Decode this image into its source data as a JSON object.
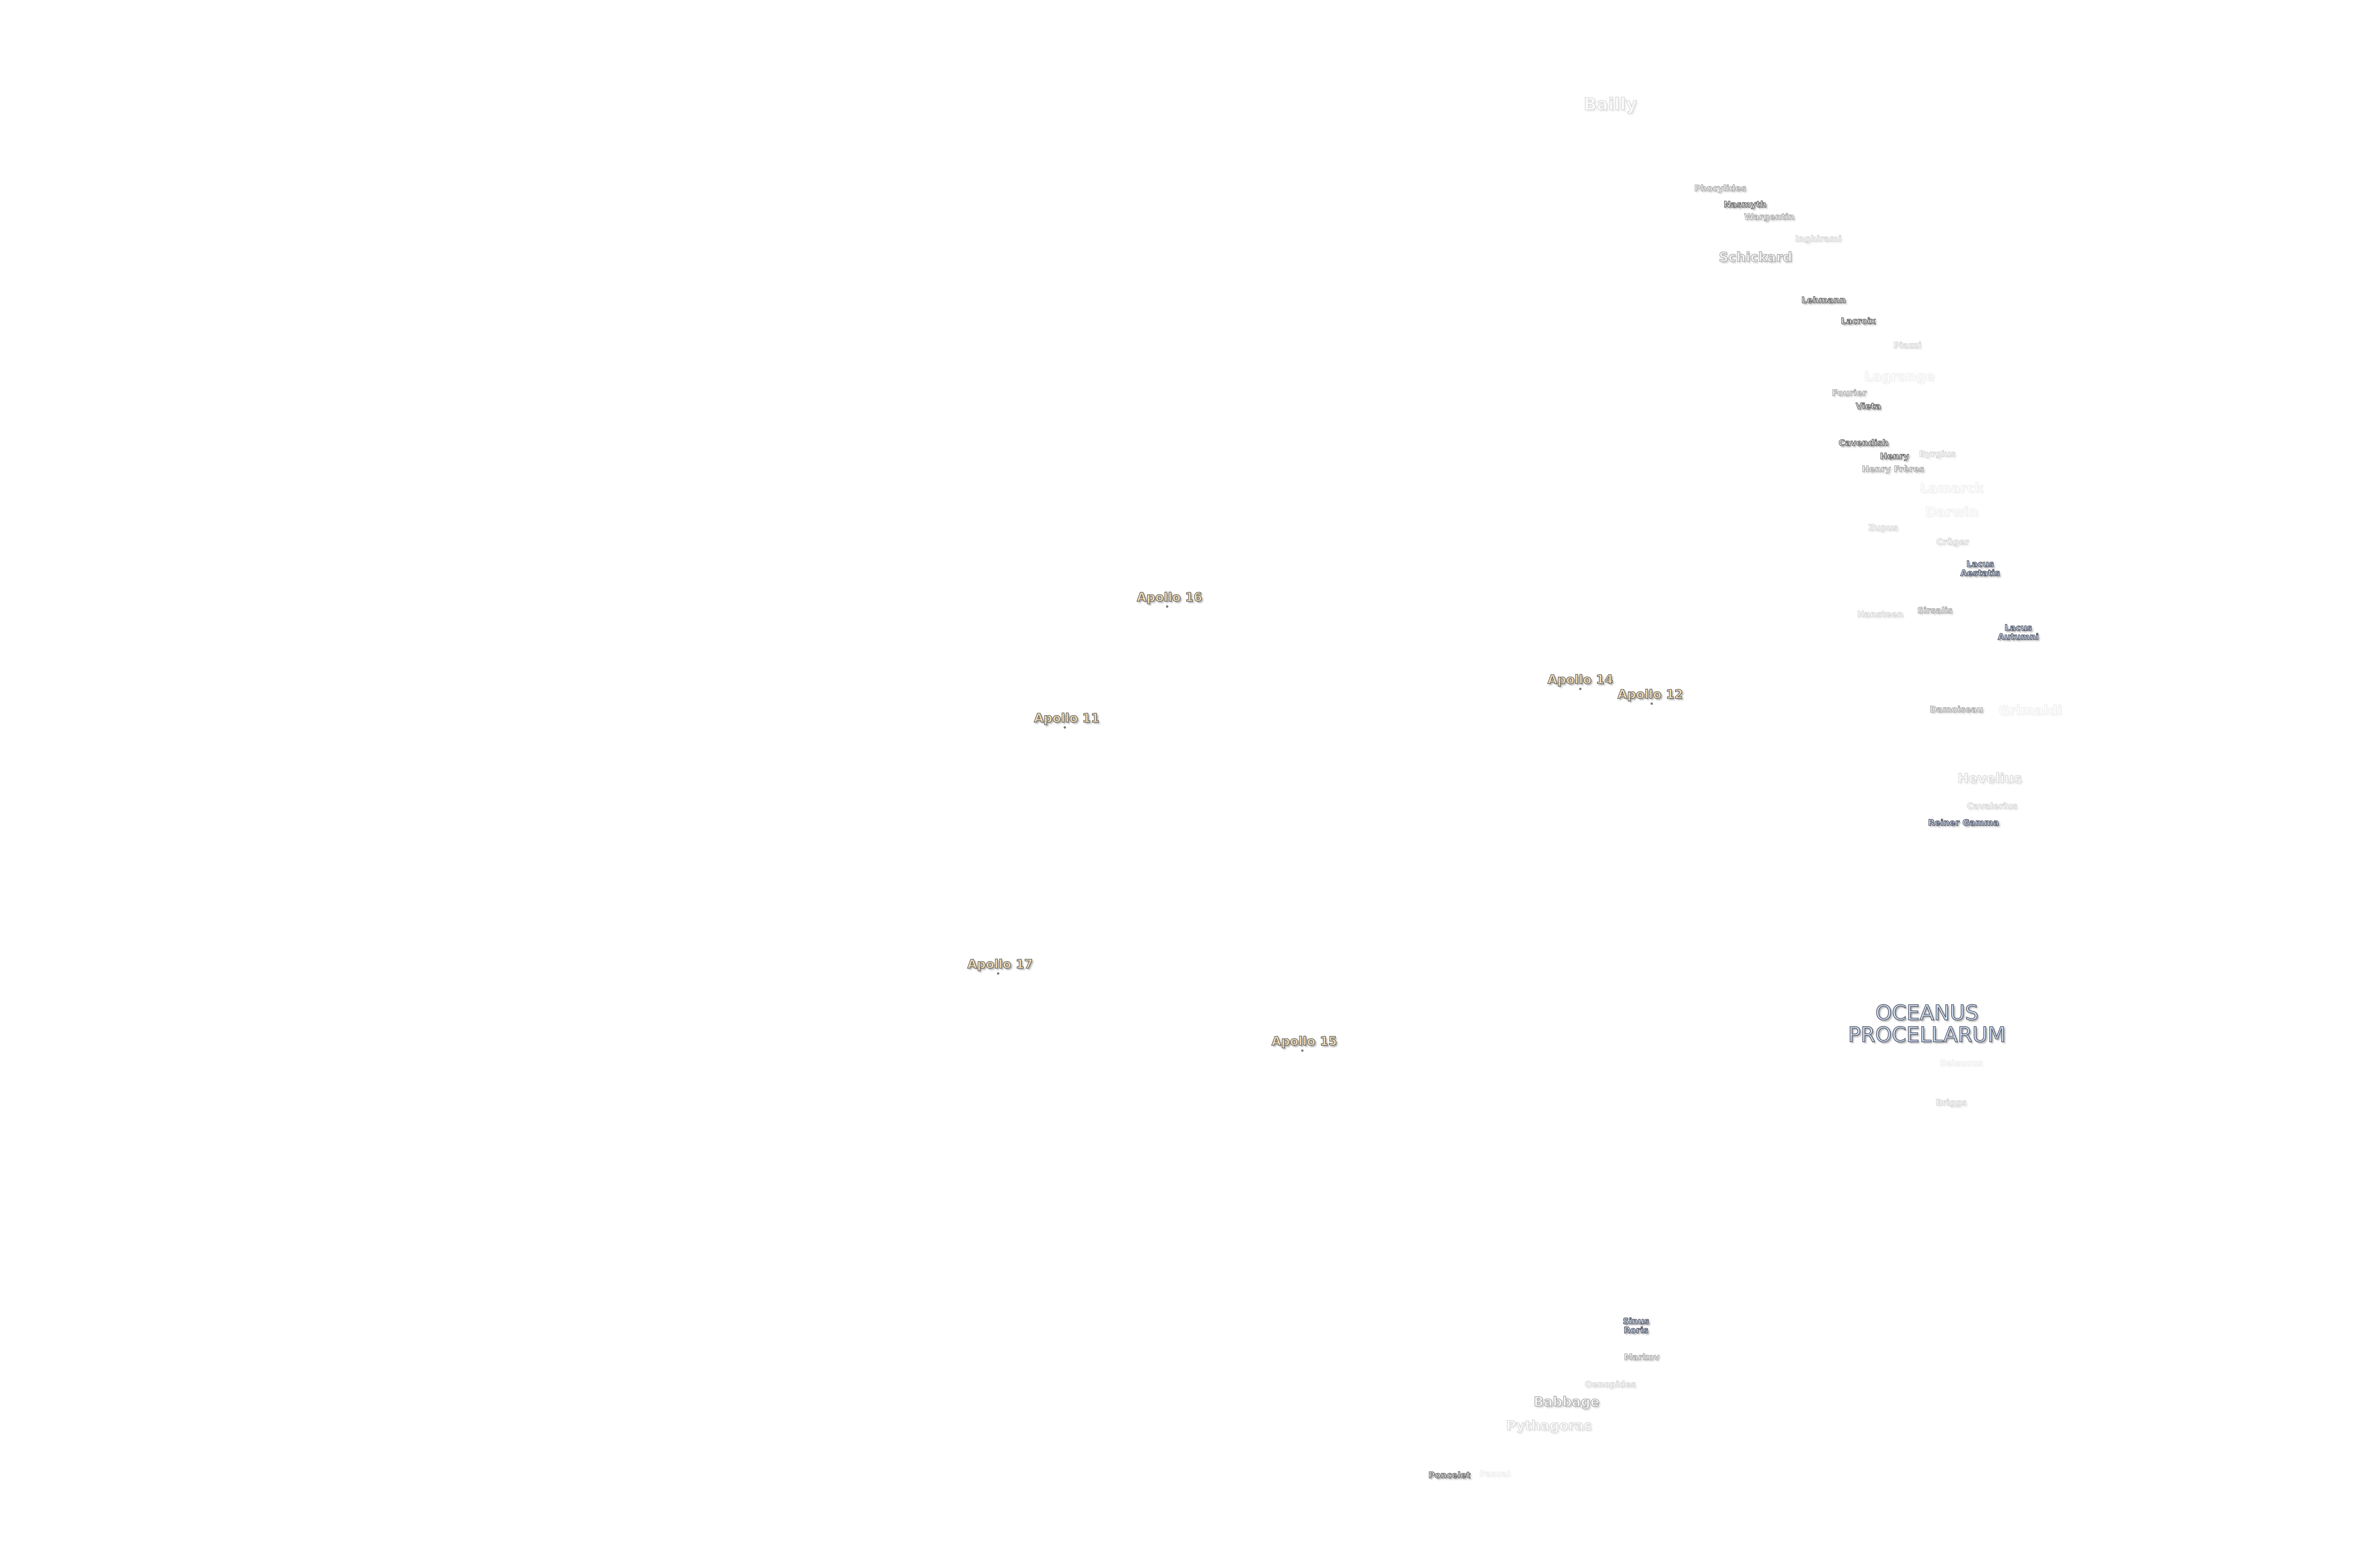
{
  "colors": {
    "background": "#ffffff",
    "crater_label": "#ececec",
    "mare_label": "#cfe3f7",
    "apollo_label": "#f5deb3",
    "outline": "#555555"
  },
  "craters": {
    "bailly": "Bailly",
    "phocylides": "Phocylides",
    "nasmyth": "Nasmyth",
    "wargentin": "Wargentin",
    "inghirami": "Inghirami",
    "schickard": "Schickard",
    "lehmann": "Lehmann",
    "lacroix": "Lacroix",
    "piazzi": "Piazzi",
    "lagrange": "Lagrange",
    "fourier": "Fourier",
    "vieta": "Vieta",
    "cavendish": "Cavendish",
    "henry": "Henry",
    "henry_freres": "Henry Frères",
    "byrgius": "Byrgius",
    "lamarck": "Lamarck",
    "darwin": "Darwin",
    "zupus": "Zupus",
    "cruger": "Crüger",
    "sirsalis": "Sirsalis",
    "hansteen": "Hansteen",
    "damoiseau": "Damoiseau",
    "grimaldi": "Grimaldi",
    "hevelius": "Hevelius",
    "cavalerius": "Cavalerius",
    "seleucus": "Seleucus",
    "briggs": "Briggs",
    "markov": "Markov",
    "oenopides": "Oenopides",
    "babbage": "Babbage",
    "pythagoras": "Pythagoras",
    "poncelet": "Poncelet",
    "pascal": "Pascal"
  },
  "maria": {
    "lacus_aestatis": [
      "Lacus",
      "Aestatis"
    ],
    "lacus_autumni": [
      "Lacus",
      "Autumni"
    ],
    "reiner_gamma": "Reiner Gamma",
    "sinus_roris": [
      "Sinus",
      "Roris"
    ],
    "oceanus_procellarum": [
      "OCEANUS",
      "PROCELLARUM"
    ]
  },
  "landing_sites": {
    "apollo11": "Apollo 11",
    "apollo12": "Apollo 12",
    "apollo14": "Apollo 14",
    "apollo15": "Apollo 15",
    "apollo16": "Apollo 16",
    "apollo17": "Apollo 17"
  }
}
